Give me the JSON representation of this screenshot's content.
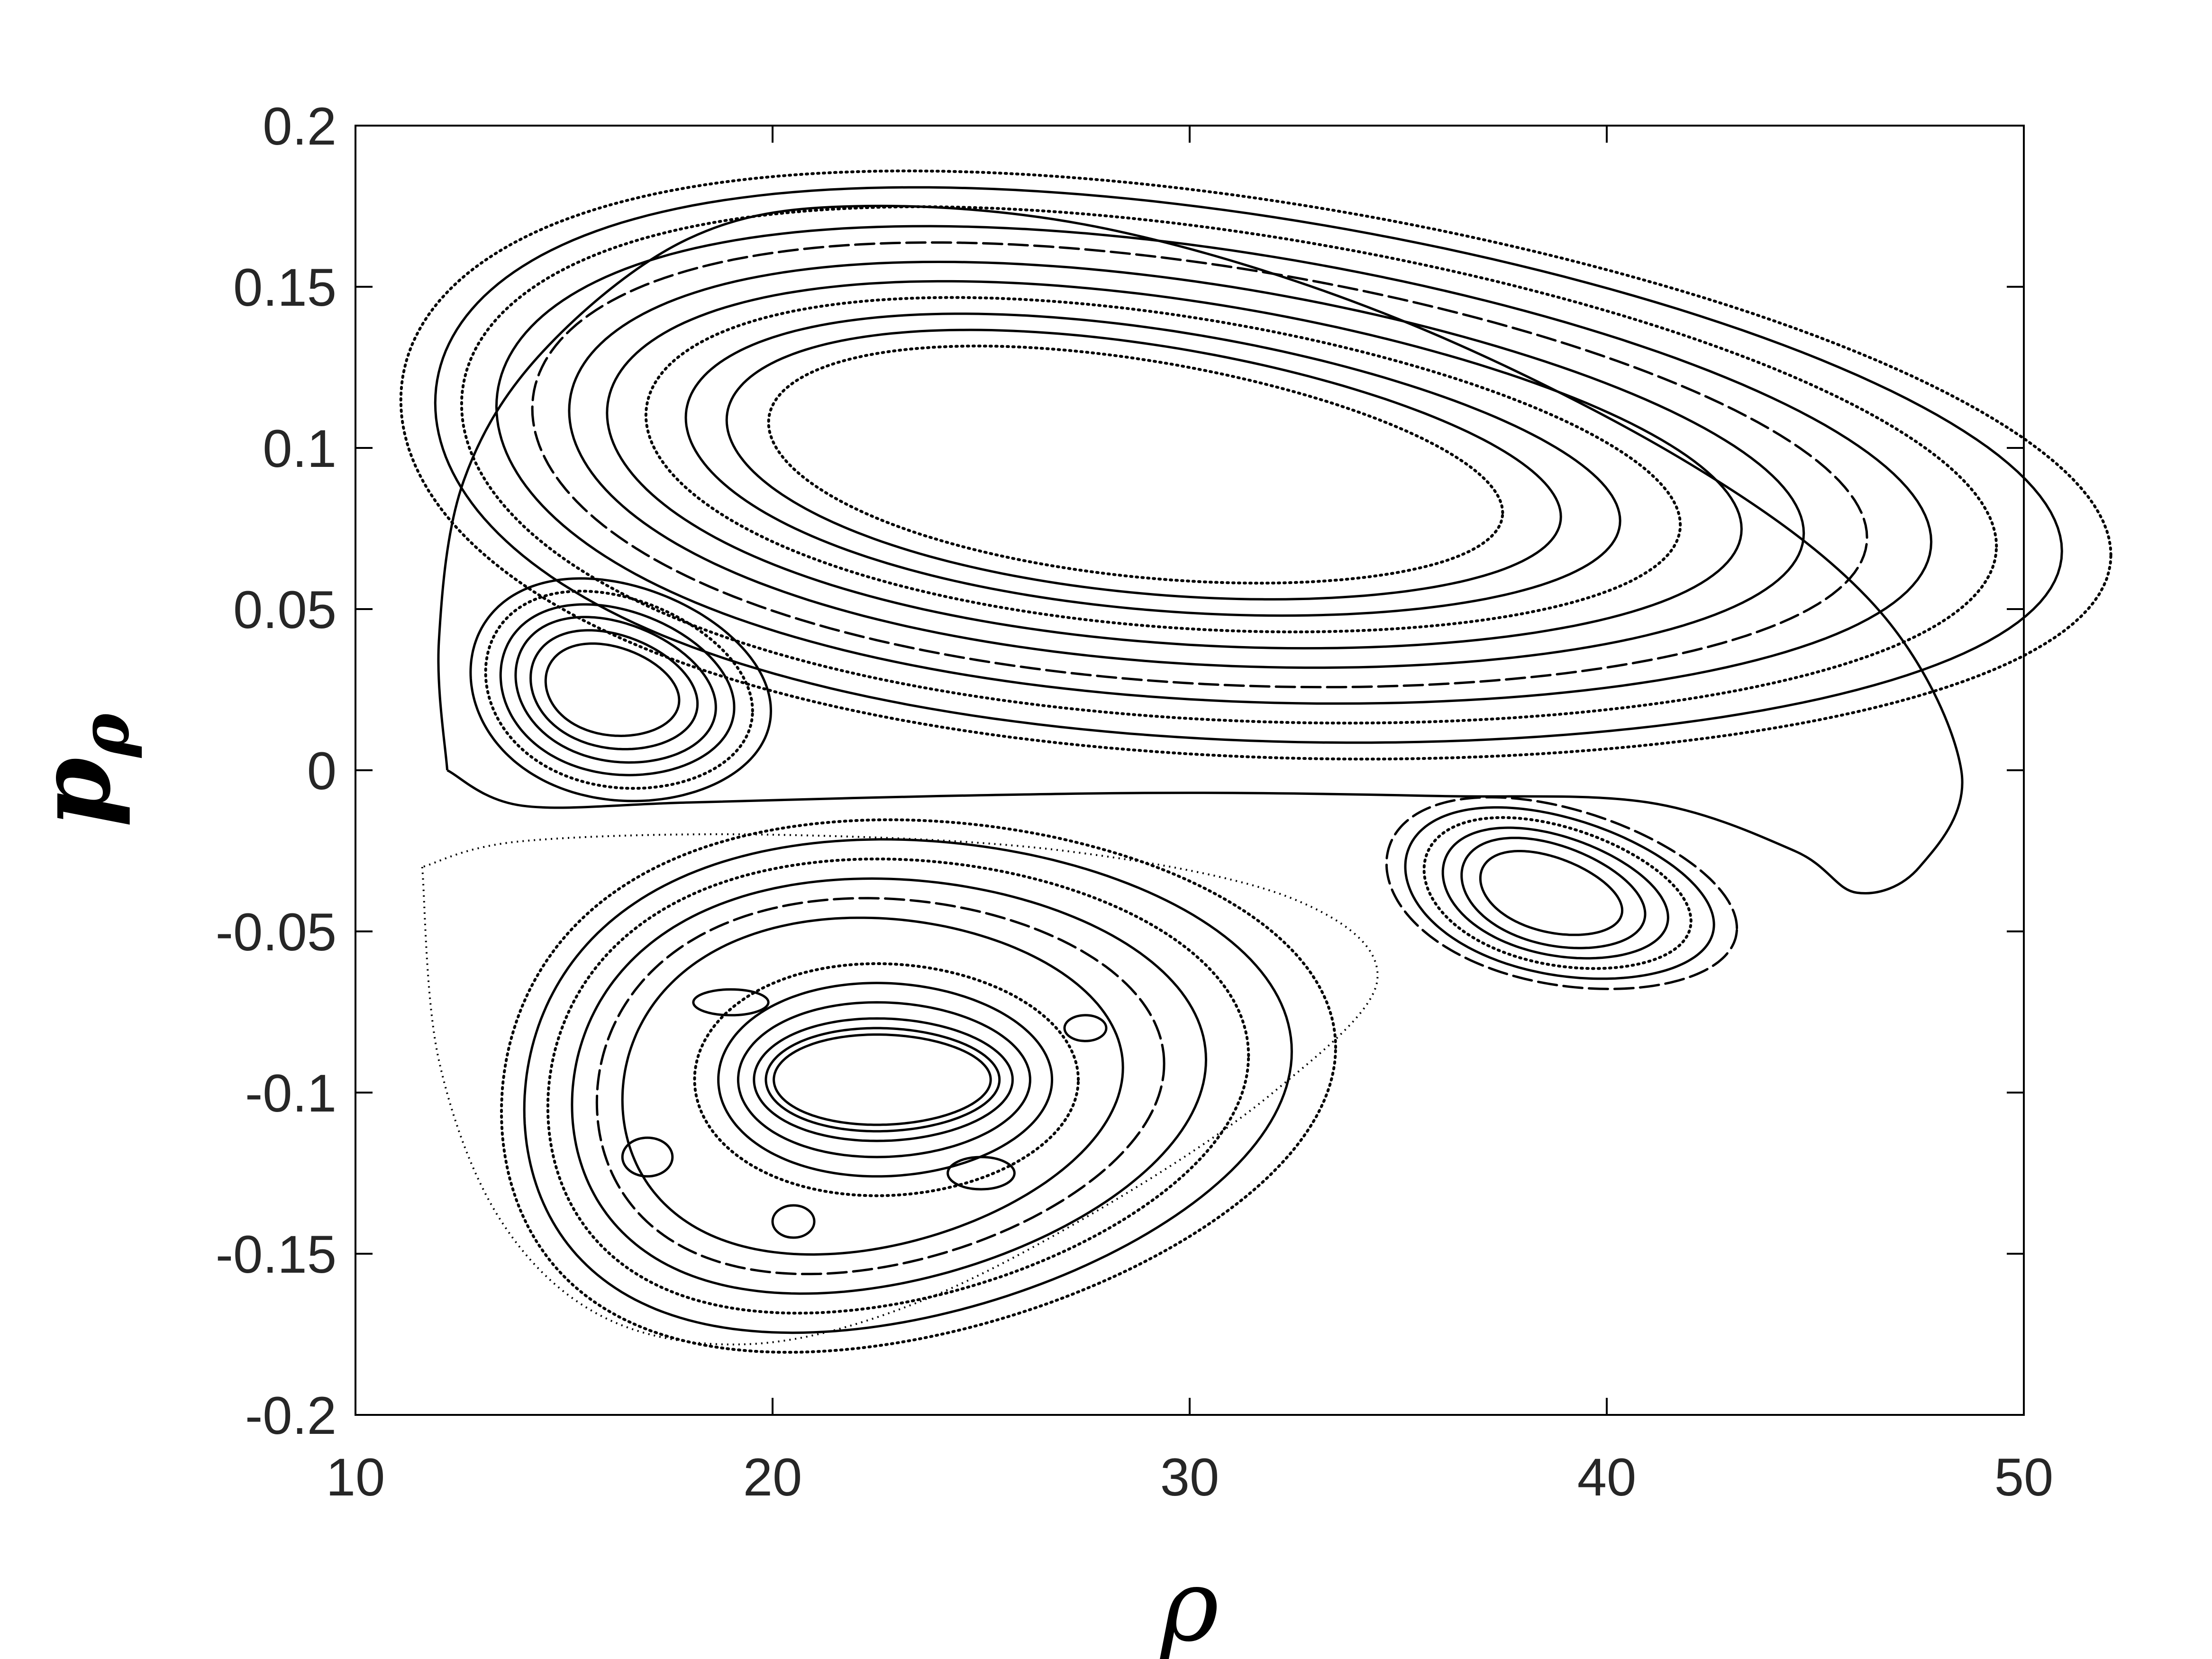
{
  "chart_data": {
    "type": "scatter",
    "title": "",
    "xlabel": "ρ",
    "ylabel_main": "p",
    "ylabel_sub": "ρ",
    "xlim": [
      10,
      50
    ],
    "ylim": [
      -0.2,
      0.2
    ],
    "xticks": [
      10,
      20,
      30,
      40,
      50
    ],
    "yticks": [
      -0.2,
      -0.15,
      -0.1,
      -0.05,
      0,
      0.05,
      0.1,
      0.15,
      0.2
    ],
    "xtick_labels": [
      "10",
      "20",
      "30",
      "40",
      "50"
    ],
    "ytick_labels": [
      "-0.2",
      "-0.15",
      "-0.1",
      "-0.05",
      "0",
      "0.05",
      "0.1",
      "0.15",
      "0.2"
    ],
    "grid": false,
    "legend": "none",
    "line_color": "#000000",
    "islands": [
      {
        "name": "upper-large",
        "center": [
          28.0,
          0.095
        ],
        "rings": [
          {
            "rx": 20.5,
            "ry": 0.088,
            "tilt": -0.024,
            "skew": 0.35,
            "style": "dotted"
          },
          {
            "rx": 19.5,
            "ry": 0.083,
            "tilt": -0.023,
            "skew": 0.35,
            "style": "solid"
          },
          {
            "rx": 18.4,
            "ry": 0.077,
            "tilt": -0.022,
            "skew": 0.32,
            "style": "dotted"
          },
          {
            "rx": 17.2,
            "ry": 0.071,
            "tilt": -0.021,
            "skew": 0.3,
            "style": "solid"
          },
          {
            "rx": 16.0,
            "ry": 0.066,
            "tilt": -0.02,
            "skew": 0.28,
            "style": "dashed"
          },
          {
            "rx": 14.8,
            "ry": 0.06,
            "tilt": -0.019,
            "skew": 0.26,
            "style": "solid"
          },
          {
            "rx": 13.6,
            "ry": 0.054,
            "tilt": -0.018,
            "skew": 0.24,
            "style": "solid"
          },
          {
            "rx": 12.4,
            "ry": 0.049,
            "tilt": -0.017,
            "skew": 0.22,
            "style": "dotted"
          },
          {
            "rx": 11.2,
            "ry": 0.044,
            "tilt": -0.016,
            "skew": 0.2,
            "style": "solid"
          },
          {
            "rx": 10.0,
            "ry": 0.039,
            "tilt": -0.015,
            "skew": 0.18,
            "style": "solid"
          },
          {
            "rx": 8.8,
            "ry": 0.034,
            "tilt": -0.014,
            "skew": 0.16,
            "style": "dotted"
          }
        ]
      },
      {
        "name": "left-small",
        "center": [
          16.0,
          0.025
        ],
        "rings": [
          {
            "rx": 3.6,
            "ry": 0.034,
            "tilt": -0.006,
            "skew": 0.2,
            "style": "solid"
          },
          {
            "rx": 3.2,
            "ry": 0.03,
            "tilt": -0.006,
            "skew": 0.2,
            "style": "dotted"
          },
          {
            "rx": 2.8,
            "ry": 0.026,
            "tilt": -0.005,
            "skew": 0.2,
            "style": "solid"
          },
          {
            "rx": 2.4,
            "ry": 0.022,
            "tilt": -0.005,
            "skew": 0.2,
            "style": "solid"
          },
          {
            "rx": 2.0,
            "ry": 0.018,
            "tilt": -0.004,
            "skew": 0.2,
            "style": "solid"
          },
          {
            "rx": 1.6,
            "ry": 0.014,
            "tilt": -0.003,
            "skew": 0.2,
            "style": "solid"
          }
        ]
      },
      {
        "name": "right-small",
        "center": [
          38.5,
          -0.038
        ],
        "rings": [
          {
            "rx": 4.2,
            "ry": 0.028,
            "tilt": -0.01,
            "skew": 0.2,
            "style": "dashed"
          },
          {
            "rx": 3.7,
            "ry": 0.025,
            "tilt": -0.009,
            "skew": 0.2,
            "style": "solid"
          },
          {
            "rx": 3.2,
            "ry": 0.022,
            "tilt": -0.008,
            "skew": 0.2,
            "style": "dotted"
          },
          {
            "rx": 2.7,
            "ry": 0.019,
            "tilt": -0.007,
            "skew": 0.2,
            "style": "solid"
          },
          {
            "rx": 2.2,
            "ry": 0.016,
            "tilt": -0.006,
            "skew": 0.2,
            "style": "solid"
          },
          {
            "rx": 1.7,
            "ry": 0.012,
            "tilt": -0.005,
            "skew": 0.2,
            "style": "solid"
          }
        ]
      },
      {
        "name": "lower-large",
        "center": [
          21.5,
          -0.098
        ],
        "rings": [
          {
            "rx": 10.0,
            "ry": 0.082,
            "tilt": 0.01,
            "skew": 0.4,
            "style": "dotted"
          },
          {
            "rx": 9.2,
            "ry": 0.076,
            "tilt": 0.009,
            "skew": 0.38,
            "style": "solid"
          },
          {
            "rx": 8.4,
            "ry": 0.07,
            "tilt": 0.008,
            "skew": 0.36,
            "style": "dotted"
          },
          {
            "rx": 7.6,
            "ry": 0.064,
            "tilt": 0.007,
            "skew": 0.34,
            "style": "solid"
          },
          {
            "rx": 6.8,
            "ry": 0.058,
            "tilt": 0.006,
            "skew": 0.32,
            "style": "dashed"
          },
          {
            "rx": 6.0,
            "ry": 0.052,
            "tilt": 0.005,
            "skew": 0.3,
            "style": "solid"
          }
        ]
      },
      {
        "name": "lower-inner",
        "center": [
          22.5,
          -0.096
        ],
        "rings": [
          {
            "rx": 4.6,
            "ry": 0.036,
            "tilt": 0.0,
            "skew": 0.1,
            "style": "dotted"
          },
          {
            "rx": 4.0,
            "ry": 0.03,
            "tilt": 0.0,
            "skew": 0.1,
            "style": "solid"
          },
          {
            "rx": 3.5,
            "ry": 0.024,
            "tilt": 0.0,
            "skew": 0.1,
            "style": "solid"
          },
          {
            "rx": 3.1,
            "ry": 0.019,
            "tilt": 0.0,
            "skew": 0.1,
            "style": "solid"
          },
          {
            "rx": 2.8,
            "ry": 0.016,
            "tilt": 0.0,
            "skew": 0.1,
            "style": "solid"
          },
          {
            "rx": 2.6,
            "ry": 0.014,
            "tilt": 0.0,
            "skew": 0.1,
            "style": "solid"
          }
        ]
      }
    ],
    "separatrix": [
      [
        12.2,
        0.0
      ],
      [
        12.0,
        0.04
      ],
      [
        12.6,
        0.09
      ],
      [
        14.5,
        0.13
      ],
      [
        18.0,
        0.165
      ],
      [
        22.0,
        0.175
      ],
      [
        28.0,
        0.168
      ],
      [
        35.0,
        0.14
      ],
      [
        42.0,
        0.095
      ],
      [
        46.5,
        0.05
      ],
      [
        48.5,
        0.0
      ],
      [
        47.5,
        -0.03
      ],
      [
        46.0,
        -0.038
      ],
      [
        44.5,
        -0.025
      ],
      [
        41.0,
        -0.01
      ],
      [
        36.0,
        -0.008
      ],
      [
        30.0,
        -0.007
      ],
      [
        24.0,
        -0.008
      ],
      [
        18.0,
        -0.01
      ],
      [
        14.0,
        -0.011
      ],
      [
        12.2,
        0.0
      ]
    ],
    "lower_separatrix": [
      [
        11.6,
        -0.03
      ],
      [
        12.0,
        -0.09
      ],
      [
        13.5,
        -0.14
      ],
      [
        16.0,
        -0.17
      ],
      [
        19.5,
        -0.178
      ],
      [
        23.5,
        -0.165
      ],
      [
        28.0,
        -0.135
      ],
      [
        32.0,
        -0.1
      ],
      [
        34.5,
        -0.065
      ],
      [
        32.5,
        -0.04
      ],
      [
        27.0,
        -0.025
      ],
      [
        20.0,
        -0.02
      ],
      [
        14.0,
        -0.022
      ],
      [
        11.6,
        -0.03
      ]
    ],
    "side_islands": [
      {
        "center": [
          17.0,
          -0.12
        ],
        "rx": 0.6,
        "ry": 0.006
      },
      {
        "center": [
          20.5,
          -0.14
        ],
        "rx": 0.5,
        "ry": 0.005
      },
      {
        "center": [
          25.0,
          -0.125
        ],
        "rx": 0.8,
        "ry": 0.005
      },
      {
        "center": [
          27.5,
          -0.08
        ],
        "rx": 0.5,
        "ry": 0.004
      },
      {
        "center": [
          19.0,
          -0.072
        ],
        "rx": 0.9,
        "ry": 0.004
      }
    ]
  }
}
